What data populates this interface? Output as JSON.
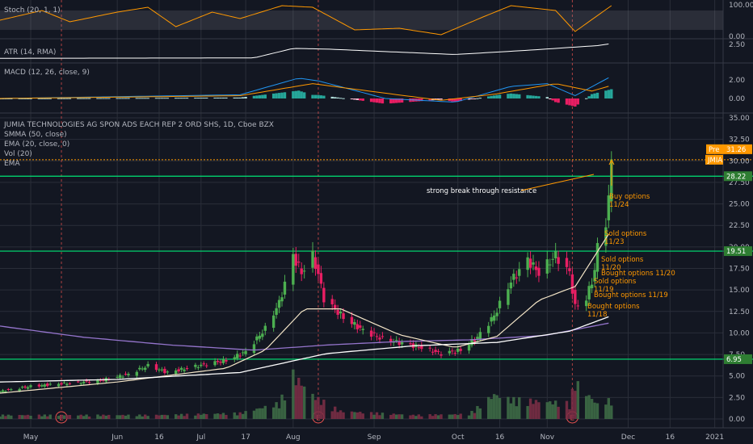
{
  "colors": {
    "background": "#131722",
    "grid": "#2a2e39",
    "up": "#26a69a",
    "up_candle": "#4caf50",
    "down": "#ef5350",
    "down_candle": "#e91e63",
    "stoch_k": "#ff9800",
    "smma": "#9575cd",
    "ema": "#ffffff",
    "resistance": "#00e676",
    "annotation": "#ff9800",
    "macd_line": "#2196f3",
    "signal_line": "#ff9800",
    "atr_line": "#ffffff"
  },
  "panes": {
    "stoch": {
      "label": "Stoch (20, 1, 1)",
      "ticks": [
        "100.00",
        "0.00"
      ]
    },
    "atr": {
      "label": "ATR (14, RMA)",
      "ticks": [
        "2.50"
      ]
    },
    "macd": {
      "label": "MACD (12, 26, close, 9)",
      "ticks": [
        "2.00",
        "0.00"
      ]
    },
    "price": {
      "title": "JUMIA TECHNOLOGIES AG SPON ADS EACH REP 2 ORD SHS, 1D, Cboe BZX",
      "legend": [
        "SMMA (50, close)",
        "EMA (20, close, 0)",
        "Vol (20)",
        "EMA"
      ],
      "ticks": [
        "35.00",
        "32.50",
        "30.00",
        "27.50",
        "25.00",
        "22.50",
        "20.00",
        "17.50",
        "15.00",
        "12.50",
        "10.00",
        "7.50",
        "5.00",
        "2.50",
        "0.00"
      ]
    }
  },
  "x_axis": {
    "labels": [
      "May",
      "Jun",
      "16",
      "Jul",
      "17",
      "Aug",
      "Sep",
      "Oct",
      "16",
      "Nov",
      "Dec",
      "16",
      "2021"
    ]
  },
  "price_tags": {
    "pre_label": "Pre",
    "pre_value": "31.26",
    "symbol": "JMIA",
    "levels": [
      "28.22",
      "19.51",
      "6.95"
    ]
  },
  "earnings_marker": "E",
  "annotations": {
    "break_note": "strong break through resistance",
    "trades": [
      "Buy options\n11/24",
      "Sold options\n11/23",
      "Sold options\n11/20",
      "Bought options 11/20",
      "Sold options\n11/19",
      "Bought options 11/19",
      "Bought options\n11/18"
    ]
  },
  "chart_data": {
    "type": "candlestick",
    "title": "JUMIA TECHNOLOGIES AG SPON ADS EACH REP 2 ORD SHS, 1D, Cboe BZX",
    "x_range": [
      "2020-04-20",
      "2021-01-04"
    ],
    "y_range": [
      -1,
      35
    ],
    "resistance_levels": [
      28.22,
      19.51,
      6.95
    ],
    "last_price": 31.26,
    "earnings_dates": [
      "2020-05-12",
      "2020-08-12",
      "2020-11-11"
    ],
    "close_keypoints": [
      [
        "2020-04-20",
        3.2
      ],
      [
        "2020-05-01",
        3.8
      ],
      [
        "2020-05-12",
        4.1
      ],
      [
        "2020-05-25",
        4.4
      ],
      [
        "2020-06-05",
        5.2
      ],
      [
        "2020-06-12",
        6.2
      ],
      [
        "2020-06-19",
        5.4
      ],
      [
        "2020-06-26",
        5.9
      ],
      [
        "2020-07-03",
        6.4
      ],
      [
        "2020-07-10",
        6.8
      ],
      [
        "2020-07-17",
        7.8
      ],
      [
        "2020-07-24",
        10.5
      ],
      [
        "2020-07-29",
        13.5
      ],
      [
        "2020-08-03",
        19.0
      ],
      [
        "2020-08-06",
        17.0
      ],
      [
        "2020-08-10",
        19.0
      ],
      [
        "2020-08-12",
        16.8
      ],
      [
        "2020-08-14",
        14.0
      ],
      [
        "2020-08-21",
        11.8
      ],
      [
        "2020-08-28",
        10.3
      ],
      [
        "2020-09-04",
        9.3
      ],
      [
        "2020-09-11",
        8.8
      ],
      [
        "2020-09-18",
        8.3
      ],
      [
        "2020-09-25",
        7.6
      ],
      [
        "2020-10-02",
        8.0
      ],
      [
        "2020-10-08",
        9.5
      ],
      [
        "2020-10-14",
        12.0
      ],
      [
        "2020-10-20",
        16.0
      ],
      [
        "2020-10-26",
        18.5
      ],
      [
        "2020-10-30",
        17.0
      ],
      [
        "2020-11-05",
        19.0
      ],
      [
        "2020-11-10",
        17.0
      ],
      [
        "2020-11-12",
        13.0
      ],
      [
        "2020-11-16",
        14.0
      ],
      [
        "2020-11-18",
        16.0
      ],
      [
        "2020-11-19",
        17.3
      ],
      [
        "2020-11-20",
        20.0
      ],
      [
        "2020-11-23",
        23.0
      ],
      [
        "2020-11-24",
        25.5
      ],
      [
        "2020-11-25",
        30.0
      ]
    ],
    "ema20_keypoints": [
      [
        "2020-04-20",
        3.0
      ],
      [
        "2020-06-01",
        4.3
      ],
      [
        "2020-07-10",
        5.9
      ],
      [
        "2020-07-24",
        8.0
      ],
      [
        "2020-08-07",
        12.8
      ],
      [
        "2020-08-20",
        12.8
      ],
      [
        "2020-09-10",
        9.8
      ],
      [
        "2020-09-30",
        8.3
      ],
      [
        "2020-10-15",
        9.6
      ],
      [
        "2020-10-30",
        13.8
      ],
      [
        "2020-11-12",
        15.4
      ],
      [
        "2020-11-25",
        22.0
      ]
    ],
    "smma50_keypoints": [
      [
        "2020-04-20",
        10.8
      ],
      [
        "2020-05-20",
        9.5
      ],
      [
        "2020-06-20",
        8.6
      ],
      [
        "2020-07-20",
        8.0
      ],
      [
        "2020-08-15",
        8.6
      ],
      [
        "2020-09-10",
        9.0
      ],
      [
        "2020-10-05",
        9.2
      ],
      [
        "2020-11-01",
        9.7
      ],
      [
        "2020-11-25",
        11.2
      ]
    ],
    "ema_long_keypoints": [
      [
        "2020-04-20",
        4.3
      ],
      [
        "2020-06-01",
        4.6
      ],
      [
        "2020-07-15",
        5.4
      ],
      [
        "2020-08-15",
        7.6
      ],
      [
        "2020-09-15",
        8.5
      ],
      [
        "2020-10-15",
        8.9
      ],
      [
        "2020-11-10",
        10.2
      ],
      [
        "2020-11-25",
        12.0
      ]
    ],
    "volume_keypoints": [
      [
        "2020-04-20",
        0.4
      ],
      [
        "2020-06-15",
        0.4
      ],
      [
        "2020-07-15",
        0.6
      ],
      [
        "2020-07-29",
        1.6
      ],
      [
        "2020-08-03",
        4.5
      ],
      [
        "2020-08-11",
        2.2
      ],
      [
        "2020-08-20",
        0.8
      ],
      [
        "2020-09-15",
        0.4
      ],
      [
        "2020-10-05",
        0.5
      ],
      [
        "2020-10-14",
        2.5
      ],
      [
        "2020-10-20",
        2.0
      ],
      [
        "2020-11-10",
        1.6
      ],
      [
        "2020-11-12",
        3.8
      ],
      [
        "2020-11-20",
        1.5
      ],
      [
        "2020-11-25",
        2.0
      ]
    ],
    "stoch_keypoints": [
      [
        "2020-04-20",
        50
      ],
      [
        "2020-05-05",
        80
      ],
      [
        "2020-05-15",
        45
      ],
      [
        "2020-06-01",
        75
      ],
      [
        "2020-06-12",
        90
      ],
      [
        "2020-06-22",
        30
      ],
      [
        "2020-07-05",
        75
      ],
      [
        "2020-07-15",
        55
      ],
      [
        "2020-07-30",
        95
      ],
      [
        "2020-08-10",
        90
      ],
      [
        "2020-08-25",
        20
      ],
      [
        "2020-09-10",
        25
      ],
      [
        "2020-09-25",
        5
      ],
      [
        "2020-10-10",
        60
      ],
      [
        "2020-10-20",
        95
      ],
      [
        "2020-11-05",
        80
      ],
      [
        "2020-11-12",
        15
      ],
      [
        "2020-11-25",
        95
      ]
    ],
    "atr_keypoints": [
      [
        "2020-04-20",
        0.45
      ],
      [
        "2020-07-20",
        0.5
      ],
      [
        "2020-08-03",
        1.9
      ],
      [
        "2020-08-15",
        1.8
      ],
      [
        "2020-09-30",
        1.0
      ],
      [
        "2020-10-25",
        1.6
      ],
      [
        "2020-11-20",
        2.3
      ],
      [
        "2020-11-25",
        2.6
      ]
    ],
    "macd_keypoints": [
      [
        "2020-04-20",
        0.0
      ],
      [
        "2020-07-15",
        0.4
      ],
      [
        "2020-08-05",
        2.2
      ],
      [
        "2020-08-12",
        1.9
      ],
      [
        "2020-09-05",
        0.0
      ],
      [
        "2020-09-30",
        -0.4
      ],
      [
        "2020-10-20",
        1.3
      ],
      [
        "2020-11-02",
        1.6
      ],
      [
        "2020-11-12",
        0.3
      ],
      [
        "2020-11-25",
        2.4
      ]
    ],
    "signal_keypoints": [
      [
        "2020-04-20",
        0.0
      ],
      [
        "2020-07-15",
        0.3
      ],
      [
        "2020-08-10",
        1.6
      ],
      [
        "2020-08-25",
        1.0
      ],
      [
        "2020-09-25",
        -0.2
      ],
      [
        "2020-10-15",
        0.5
      ],
      [
        "2020-11-05",
        1.6
      ],
      [
        "2020-11-18",
        0.8
      ],
      [
        "2020-11-25",
        1.4
      ]
    ]
  }
}
